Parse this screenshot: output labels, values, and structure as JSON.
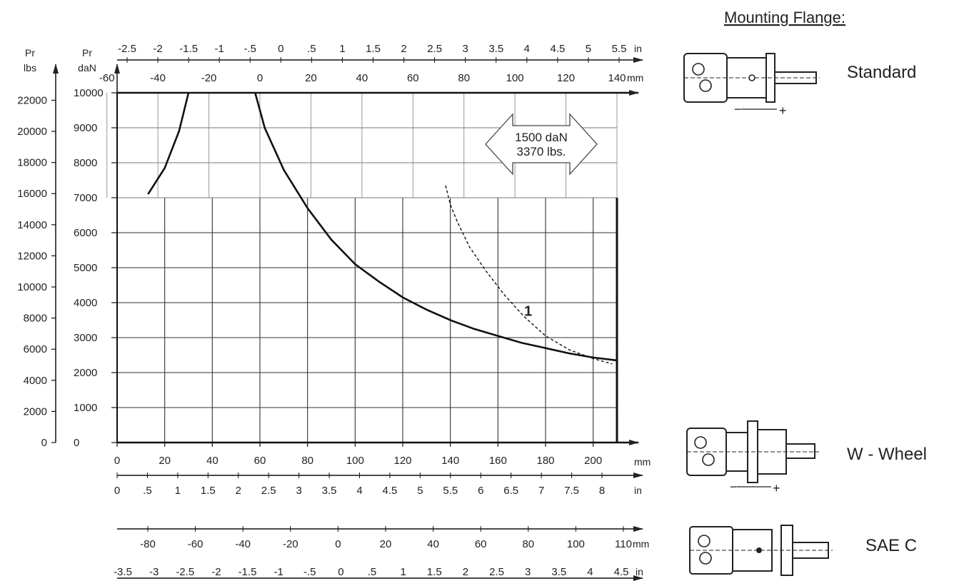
{
  "chart_data": {
    "type": "line",
    "title": "",
    "heading": "Mounting Flange:",
    "left_axes": [
      {
        "title": [
          "Pr",
          "lbs"
        ],
        "ticks": [
          0,
          2000,
          4000,
          6000,
          8000,
          10000,
          12000,
          14000,
          16000,
          18000,
          20000,
          22000
        ],
        "range": [
          0,
          22480
        ]
      },
      {
        "title": [
          "Pr",
          "daN"
        ],
        "ticks": [
          0,
          1000,
          2000,
          3000,
          4000,
          5000,
          6000,
          7000,
          8000,
          9000,
          10000
        ],
        "range": [
          0,
          10000
        ]
      }
    ],
    "top_axes": [
      {
        "unit": "in",
        "ticks": [
          "-2.5",
          "-2",
          "-1.5",
          "-1",
          "-.5",
          "0",
          ".5",
          "1",
          "1.5",
          "2",
          "2.5",
          "3",
          "3.5",
          "4",
          "4.5",
          "5",
          "5.5"
        ]
      },
      {
        "unit": "mm",
        "ticks": [
          -60,
          -40,
          -20,
          0,
          20,
          40,
          60,
          80,
          100,
          120,
          140
        ]
      }
    ],
    "bottom_axes": [
      {
        "unit": "mm",
        "ticks": [
          0,
          20,
          40,
          60,
          80,
          100,
          120,
          140,
          160,
          180,
          200
        ],
        "range": [
          0,
          210
        ]
      },
      {
        "unit": "in",
        "ticks": [
          "0",
          ".5",
          "1",
          "1.5",
          "2",
          "2.5",
          "3",
          "3.5",
          "4",
          "4.5",
          "5",
          "5.5",
          "6",
          "6.5",
          "7",
          "7.5",
          "8"
        ]
      },
      {
        "unit": "mm",
        "ticks": [
          -80,
          -60,
          -40,
          -20,
          0,
          20,
          40,
          60,
          80,
          100,
          110
        ]
      },
      {
        "unit": "in",
        "ticks": [
          "-3.5",
          "-3",
          "-2.5",
          "-2",
          "-1.5",
          "-1",
          "-.5",
          "0",
          ".5",
          "1",
          "1.5",
          "2",
          "2.5",
          "3",
          "3.5",
          "4",
          "4.5"
        ]
      }
    ],
    "series": [
      {
        "style": "solid",
        "points": [
          [
            13,
            7100
          ],
          [
            20,
            7850
          ],
          [
            26,
            8900
          ],
          [
            30,
            10000
          ]
        ]
      },
      {
        "style": "solid",
        "points": [
          [
            58,
            10000
          ],
          [
            62,
            9000
          ],
          [
            70,
            7800
          ],
          [
            80,
            6700
          ],
          [
            90,
            5800
          ],
          [
            100,
            5100
          ],
          [
            110,
            4600
          ],
          [
            120,
            4150
          ],
          [
            130,
            3800
          ],
          [
            140,
            3500
          ],
          [
            150,
            3250
          ],
          [
            160,
            3050
          ],
          [
            170,
            2850
          ],
          [
            180,
            2700
          ],
          [
            190,
            2550
          ],
          [
            200,
            2430
          ],
          [
            210,
            2350
          ]
        ]
      },
      {
        "style": "dashed",
        "label": "1",
        "points": [
          [
            138,
            7350
          ],
          [
            140,
            6800
          ],
          [
            143,
            6300
          ],
          [
            148,
            5600
          ],
          [
            155,
            4900
          ],
          [
            163,
            4200
          ],
          [
            171,
            3600
          ],
          [
            180,
            3050
          ],
          [
            190,
            2650
          ],
          [
            200,
            2400
          ],
          [
            208,
            2250
          ]
        ]
      }
    ],
    "annotation": {
      "lines": [
        "1500 daN",
        "3370 lbs."
      ]
    },
    "grid": true
  },
  "mounting": [
    {
      "name": "Standard"
    },
    {
      "name": "W - Wheel"
    },
    {
      "name": "SAE C"
    }
  ]
}
